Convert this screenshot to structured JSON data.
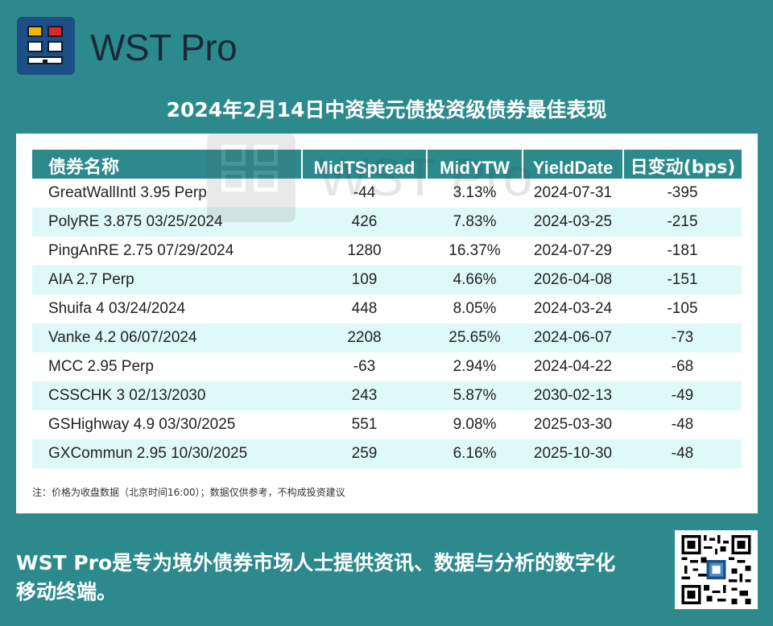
{
  "brand": {
    "name": "WST Pro",
    "colors": {
      "bg": "#2d8a8c",
      "logo": "#1d4e86"
    }
  },
  "title": "2024年2月14日中资美元债投资级债券最佳表现",
  "table": {
    "headers": [
      "债券名称",
      "MidTSpread",
      "MidYTW",
      "YieldDate",
      "日变动(bps)"
    ],
    "rows": [
      [
        "GreatWallIntl 3.95 Perp",
        "-44",
        "3.13%",
        "2024-07-31",
        "-395"
      ],
      [
        "PolyRE 3.875 03/25/2024",
        "426",
        "7.83%",
        "2024-03-25",
        "-215"
      ],
      [
        "PingAnRE 2.75 07/29/2024",
        "1280",
        "16.37%",
        "2024-07-29",
        "-181"
      ],
      [
        "AIA 2.7 Perp",
        "109",
        "4.66%",
        "2026-04-08",
        "-151"
      ],
      [
        "Shuifa 4 03/24/2024",
        "448",
        "8.05%",
        "2024-03-24",
        "-105"
      ],
      [
        "Vanke 4.2 06/07/2024",
        "2208",
        "25.65%",
        "2024-06-07",
        "-73"
      ],
      [
        "MCC 2.95 Perp",
        "-63",
        "2.94%",
        "2024-04-22",
        "-68"
      ],
      [
        "CSSCHK 3 02/13/2030",
        "243",
        "5.87%",
        "2030-02-13",
        "-49"
      ],
      [
        "GSHighway 4.9 03/30/2025",
        "551",
        "9.08%",
        "2025-03-30",
        "-48"
      ],
      [
        "GXCommun 2.95 10/30/2025",
        "259",
        "6.16%",
        "2025-10-30",
        "-48"
      ]
    ]
  },
  "watermark": "WST Pro",
  "note": "注：价格为收盘数据（北京时间16:00）；数据仅供参考，不构成投资建议",
  "footer": "WST Pro是专为境外债券市场人士提供资讯、数据与分析的数字化移动终端。",
  "icons": {
    "logo": "wst-logo-icon",
    "qr": "qr-code-icon"
  }
}
